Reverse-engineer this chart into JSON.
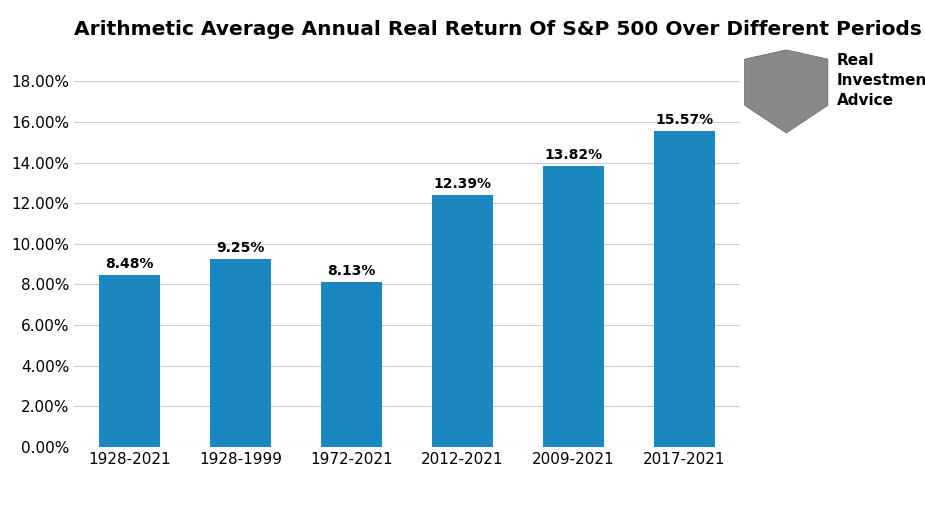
{
  "title": "Arithmetic Average Annual Real Return Of S&P 500 Over Different Periods",
  "categories": [
    "1928-2021",
    "1928-1999",
    "1972-2021",
    "2012-2021",
    "2009-2021",
    "2017-2021"
  ],
  "values": [
    0.0848,
    0.0925,
    0.0813,
    0.1239,
    0.1382,
    0.1557
  ],
  "labels": [
    "8.48%",
    "9.25%",
    "8.13%",
    "12.39%",
    "13.82%",
    "15.57%"
  ],
  "bar_color": "#1a87c1",
  "background_color": "#ffffff",
  "ylim": [
    0,
    0.18
  ],
  "yticks": [
    0.0,
    0.02,
    0.04,
    0.06,
    0.08,
    0.1,
    0.12,
    0.14,
    0.16,
    0.18
  ],
  "title_fontsize": 14.5,
  "label_fontsize": 10,
  "tick_fontsize": 11,
  "grid_color": "#cccccc",
  "logo_text": "Real\nInvestment\nAdvice",
  "logo_fontsize": 11
}
